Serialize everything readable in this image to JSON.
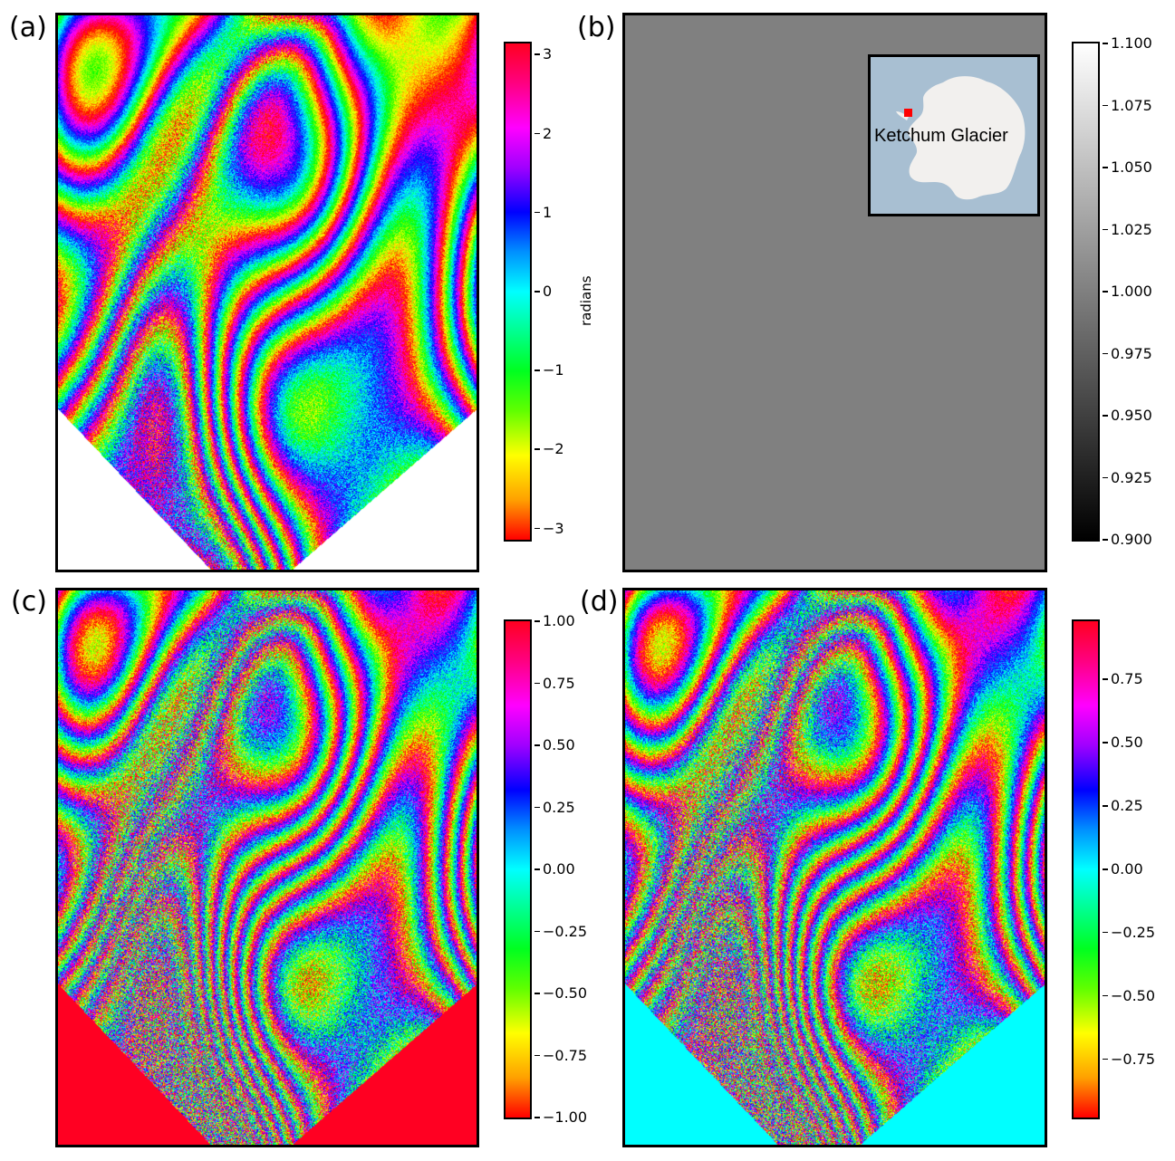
{
  "figure": {
    "panels": [
      {
        "id": "a",
        "label": "(a)",
        "cmap": "hsv",
        "mask_color": "#ffffff",
        "colorbar": {
          "label": "radians",
          "range": [
            -3.14159,
            3.14159
          ],
          "ticks": [
            "3",
            "2",
            "1",
            "0",
            "−1",
            "−2",
            "−3"
          ],
          "tick_values": [
            3,
            2,
            1,
            0,
            -1,
            -2,
            -3
          ]
        }
      },
      {
        "id": "b",
        "label": "(b)",
        "cmap": "gray",
        "fill_color": "#808080",
        "colorbar": {
          "range": [
            0.9,
            1.1
          ],
          "ticks": [
            "1.100",
            "1.075",
            "1.050",
            "1.025",
            "1.000",
            "0.975",
            "0.950",
            "0.925",
            "0.900"
          ],
          "tick_values": [
            1.1,
            1.075,
            1.05,
            1.025,
            1.0,
            0.975,
            0.95,
            0.925,
            0.9
          ]
        },
        "inset": {
          "label": "Ketchum Glacier",
          "ocean_color": "#a8bfd2",
          "land_color": "#f2f0ee",
          "marker_color": "#ff0000"
        }
      },
      {
        "id": "c",
        "label": "(c)",
        "cmap": "hsv",
        "mask_color": "#ff0022",
        "colorbar": {
          "range": [
            -1.0,
            1.0
          ],
          "ticks": [
            "1.00",
            "0.75",
            "0.50",
            "0.25",
            "0.00",
            "−0.25",
            "−0.50",
            "−0.75",
            "−1.00"
          ],
          "tick_values": [
            1.0,
            0.75,
            0.5,
            0.25,
            0.0,
            -0.25,
            -0.5,
            -0.75,
            -1.0
          ]
        }
      },
      {
        "id": "d",
        "label": "(d)",
        "cmap": "hsv",
        "mask_color": "#00ffff",
        "colorbar": {
          "range": [
            -0.98,
            0.98
          ],
          "ticks": [
            "0.75",
            "0.50",
            "0.25",
            "0.00",
            "−0.25",
            "−0.50",
            "−0.75"
          ],
          "tick_values": [
            0.75,
            0.5,
            0.25,
            0.0,
            -0.25,
            -0.5,
            -0.75
          ]
        }
      }
    ]
  },
  "chart_data": [
    {
      "type": "heatmap",
      "panel": "(a)",
      "colormap": "hsv",
      "colorbar_label": "radians",
      "zlim": [
        -3.14159,
        3.14159
      ]
    },
    {
      "type": "heatmap",
      "panel": "(b)",
      "colormap": "gray",
      "zlim": [
        0.9,
        1.1
      ],
      "uniform_value": 1.0,
      "inset_annotation": "Ketchum Glacier"
    },
    {
      "type": "heatmap",
      "panel": "(c)",
      "colormap": "hsv",
      "zlim": [
        -1.0,
        1.0
      ]
    },
    {
      "type": "heatmap",
      "panel": "(d)",
      "colormap": "hsv",
      "zlim": [
        -0.98,
        0.98
      ]
    }
  ]
}
